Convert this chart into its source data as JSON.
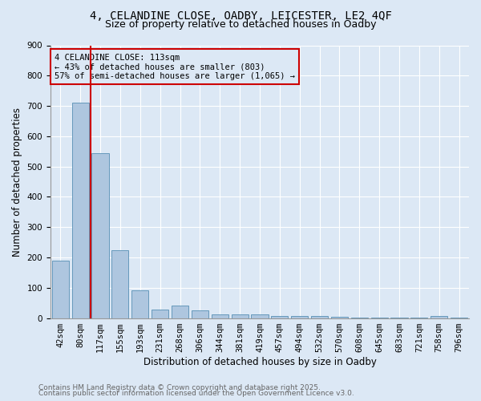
{
  "title_line1": "4, CELANDINE CLOSE, OADBY, LEICESTER, LE2 4QF",
  "title_line2": "Size of property relative to detached houses in Oadby",
  "categories": [
    "42sqm",
    "80sqm",
    "117sqm",
    "155sqm",
    "193sqm",
    "231sqm",
    "268sqm",
    "306sqm",
    "344sqm",
    "381sqm",
    "419sqm",
    "457sqm",
    "494sqm",
    "532sqm",
    "570sqm",
    "608sqm",
    "645sqm",
    "683sqm",
    "721sqm",
    "758sqm",
    "796sqm"
  ],
  "values": [
    190,
    710,
    545,
    225,
    92,
    28,
    40,
    25,
    13,
    12,
    12,
    8,
    8,
    8,
    5,
    2,
    2,
    2,
    2,
    8,
    2
  ],
  "bar_color": "#aec6df",
  "bar_edge_color": "#6699bb",
  "background_color": "#dce8f5",
  "grid_color": "#ffffff",
  "ylabel": "Number of detached properties",
  "xlabel": "Distribution of detached houses by size in Oadby",
  "ylim": [
    0,
    900
  ],
  "red_line_x": 1.5,
  "red_line_color": "#cc0000",
  "annotation_title": "4 CELANDINE CLOSE: 113sqm",
  "annotation_line2": "← 43% of detached houses are smaller (803)",
  "annotation_line3": "57% of semi-detached houses are larger (1,065) →",
  "footnote1": "Contains HM Land Registry data © Crown copyright and database right 2025.",
  "footnote2": "Contains public sector information licensed under the Open Government Licence v3.0.",
  "title_fontsize": 10,
  "subtitle_fontsize": 9,
  "axis_label_fontsize": 8.5,
  "tick_fontsize": 7.5,
  "footnote_fontsize": 6.5,
  "annotation_fontsize": 7.5
}
